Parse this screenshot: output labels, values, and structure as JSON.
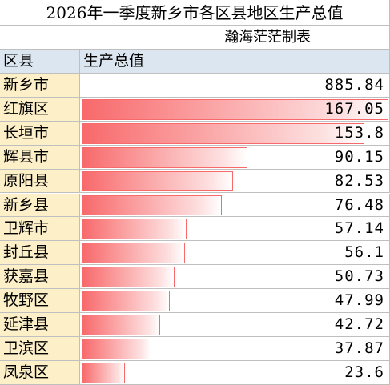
{
  "title": "2026年一季度新乡市各区县地区生产总值",
  "subtitle": "瀚海茫茫制表",
  "header": [
    "区县",
    "生产总值"
  ],
  "total": [
    "新乡市",
    885.84
  ],
  "rows": [
    [
      "红旗区",
      167.05
    ],
    [
      "长垣市",
      153.8
    ],
    [
      "辉县市",
      90.15
    ],
    [
      "原阳县",
      82.53
    ],
    [
      "新乡县",
      76.48
    ],
    [
      "卫辉市",
      57.14
    ],
    [
      "封丘县",
      56.1
    ],
    [
      "获嘉县",
      50.73
    ],
    [
      "牧野区",
      47.99
    ],
    [
      "延津县",
      42.72
    ],
    [
      "卫滨区",
      37.87
    ],
    [
      "凤泉区",
      23.6
    ]
  ]
}
